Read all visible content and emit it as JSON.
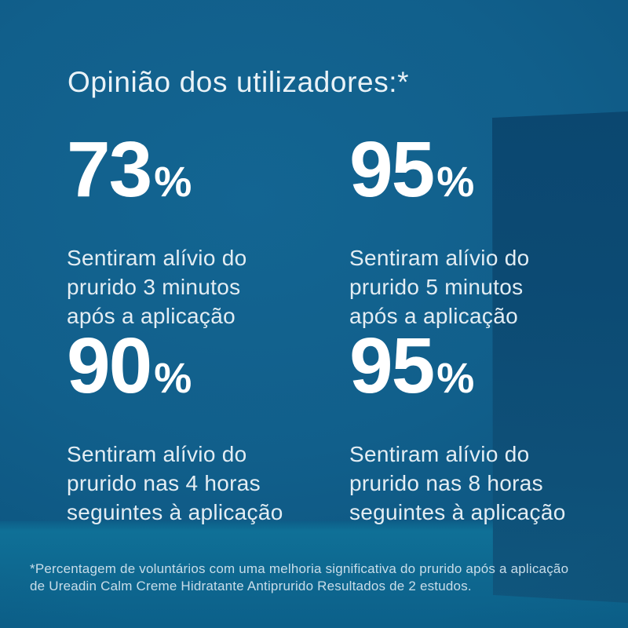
{
  "title": "Opinião dos utilizadores:*",
  "stats": [
    {
      "value": "73",
      "unit": "%",
      "lines": [
        "Sentiram alívio do",
        "prurido 3 minutos",
        "após a aplicação"
      ]
    },
    {
      "value": "95",
      "unit": "%",
      "lines": [
        "Sentiram alívio do",
        "prurido 5 minutos",
        "após a aplicação"
      ]
    },
    {
      "value": "90",
      "unit": "%",
      "lines": [
        "Sentiram alívio do",
        "prurido nas 4 horas",
        "seguintes à aplicação"
      ]
    },
    {
      "value": "95",
      "unit": "%",
      "lines": [
        "Sentiram alívio do",
        "prurido nas 8 horas",
        "seguintes à aplicação"
      ]
    }
  ],
  "footnote": {
    "lines": [
      "*Percentagem de voluntários com uma melhoria significativa do prurido após a aplicação",
      "de Ureadin Calm Creme Hidratante Antiprurido Resultados de 2 estudos."
    ]
  },
  "colors": {
    "wall": "#115f8b",
    "wall-dark": "#0a4e78",
    "floor": "#0e6890",
    "floor-light": "#0f7097",
    "box": "#0c4a73",
    "box-dark": "#0a456e",
    "box-light": "#10587f",
    "title-text": "#e9f2f7",
    "stat-text": "#ffffff",
    "desc-text": "#e3edf3",
    "footnote-text": "#c9dde9"
  }
}
